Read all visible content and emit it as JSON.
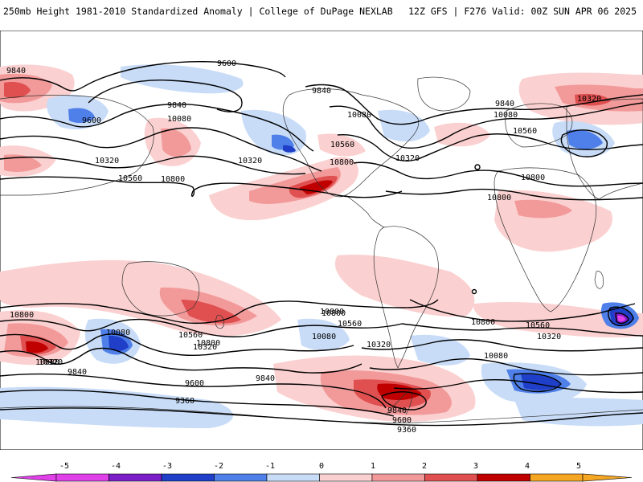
{
  "header": {
    "left": "250mb Height 1981-2010 Standardized Anomaly | College of DuPage NEXLAB",
    "right": "12Z GFS | F276 Valid: 00Z SUN APR 06 2025"
  },
  "colors": {
    "neg5": "#e040e8",
    "neg4": "#7a1fc8",
    "neg3": "#1f3fc8",
    "neg2": "#4f7fe8",
    "neg1": "#c8dcf8",
    "pos1": "#fbd0d0",
    "pos2": "#f29a9a",
    "pos3": "#e05050",
    "pos4": "#c00000",
    "pos5": "#f5a623",
    "contour": "#000000",
    "land": "#333333"
  },
  "contour_labels": [
    {
      "id": "c1",
      "text": "9840"
    },
    {
      "id": "c2",
      "text": "9600"
    },
    {
      "id": "c3",
      "text": "9600"
    },
    {
      "id": "c4",
      "text": "9840"
    },
    {
      "id": "c5",
      "text": "10080"
    },
    {
      "id": "c6",
      "text": "10320"
    },
    {
      "id": "c7",
      "text": "10560"
    },
    {
      "id": "c8",
      "text": "10800"
    },
    {
      "id": "c9",
      "text": "10320"
    },
    {
      "id": "c10",
      "text": "9840"
    },
    {
      "id": "c11",
      "text": "10080"
    },
    {
      "id": "c12",
      "text": "10560"
    },
    {
      "id": "c13",
      "text": "10800"
    },
    {
      "id": "c14",
      "text": "10320"
    },
    {
      "id": "c15",
      "text": "9840"
    },
    {
      "id": "c16",
      "text": "10320"
    },
    {
      "id": "c17",
      "text": "10080"
    },
    {
      "id": "c18",
      "text": "10560"
    },
    {
      "id": "c19",
      "text": "10800"
    },
    {
      "id": "c20",
      "text": "10800"
    },
    {
      "id": "c21",
      "text": "10080"
    },
    {
      "id": "c22",
      "text": "10800"
    },
    {
      "id": "c23",
      "text": "10560"
    },
    {
      "id": "c24",
      "text": "10320"
    },
    {
      "id": "c25",
      "text": "9840"
    },
    {
      "id": "c26",
      "text": "10800"
    },
    {
      "id": "c27",
      "text": "10560"
    },
    {
      "id": "c28",
      "text": "10320"
    },
    {
      "id": "c29",
      "text": "10080"
    },
    {
      "id": "c30",
      "text": "9840"
    },
    {
      "id": "c31",
      "text": "9600"
    },
    {
      "id": "c32",
      "text": "9360"
    },
    {
      "id": "c33",
      "text": "10800"
    },
    {
      "id": "c34",
      "text": "10560"
    },
    {
      "id": "c35",
      "text": "10320"
    },
    {
      "id": "c36",
      "text": "10080"
    },
    {
      "id": "c37",
      "text": "10080"
    },
    {
      "id": "c38",
      "text": "10320"
    },
    {
      "id": "c39",
      "text": "9840"
    },
    {
      "id": "c40",
      "text": "9600"
    },
    {
      "id": "c41",
      "text": "9360"
    },
    {
      "id": "c42",
      "text": "10800"
    },
    {
      "id": "c43",
      "text": "10800"
    }
  ],
  "colorbar": {
    "ticks": [
      "-5",
      "-4",
      "-3",
      "-2",
      "-1",
      "0",
      "1",
      "2",
      "3",
      "4",
      "5"
    ]
  }
}
